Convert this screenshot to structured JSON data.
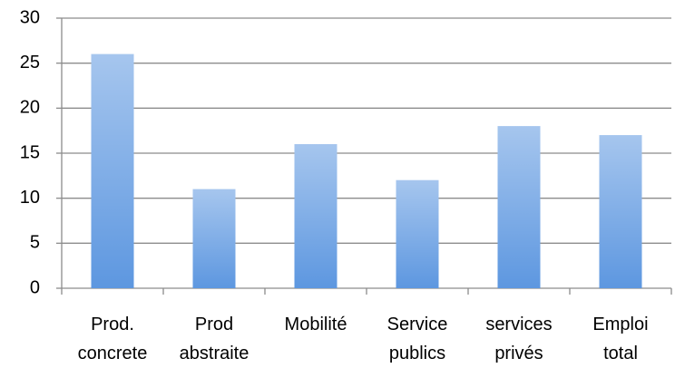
{
  "chart_data": {
    "type": "bar",
    "categories": [
      "Prod. concrete",
      "Prod abstraite",
      "Mobilité",
      "Service publics",
      "services privés",
      "Emploi total"
    ],
    "values": [
      26,
      11,
      16,
      12,
      18,
      17
    ],
    "color": "#5d97e0",
    "ylim": [
      0,
      30
    ],
    "yticks": [
      0,
      5,
      10,
      15,
      20,
      25,
      30
    ],
    "grid": true
  }
}
